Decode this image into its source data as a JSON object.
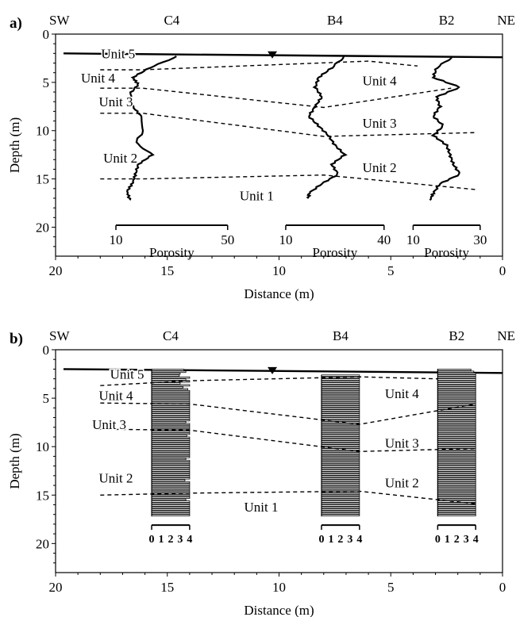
{
  "chart_data": [
    {
      "panel": "a)",
      "type": "line",
      "xlabel": "Distance (m)",
      "ylabel": "Depth (m)",
      "xlim": [
        20,
        0
      ],
      "ylim": [
        0,
        23
      ],
      "x_ticks": [
        "20",
        "15",
        "10",
        "5",
        "0"
      ],
      "y_ticks": [
        "0",
        "5",
        "10",
        "15",
        "20"
      ],
      "direction_left": "SW",
      "direction_right": "NE",
      "water_table": {
        "distance": 10.3,
        "depth": 2.2
      },
      "ground_surface": [
        [
          20,
          2.0
        ],
        [
          0,
          2.4
        ]
      ],
      "wells": [
        {
          "name": "C4",
          "series_name": "Porosity",
          "axis_min": 10,
          "axis_max": 50,
          "axis_from_distance": 17.3,
          "axis_to_distance": 12.3,
          "profile": [
            [
              2.3,
              32
            ],
            [
              3.5,
              22
            ],
            [
              4.5,
              16
            ],
            [
              5.2,
              18
            ],
            [
              6.2,
              15
            ],
            [
              7.5,
              16
            ],
            [
              8.5,
              19
            ],
            [
              10.0,
              20
            ],
            [
              11.2,
              17
            ],
            [
              12.5,
              23
            ],
            [
              13.5,
              18
            ],
            [
              14.5,
              17
            ],
            [
              15.4,
              16
            ],
            [
              16.3,
              14
            ],
            [
              17.2,
              15
            ]
          ]
        },
        {
          "name": "B4",
          "series_name": "Porosity",
          "axis_min": 10,
          "axis_max": 40,
          "axis_from_distance": 9.7,
          "axis_to_distance": 5.3,
          "profile": [
            [
              2.3,
              28
            ],
            [
              3.5,
              24
            ],
            [
              4.5,
              20
            ],
            [
              5.5,
              19
            ],
            [
              6.5,
              21
            ],
            [
              7.5,
              19
            ],
            [
              8.5,
              17
            ],
            [
              9.5,
              20
            ],
            [
              10.5,
              23
            ],
            [
              11.5,
              25
            ],
            [
              12.5,
              28
            ],
            [
              13.5,
              24
            ],
            [
              14.5,
              26
            ],
            [
              15.5,
              21
            ],
            [
              16.5,
              17
            ],
            [
              17.0,
              17
            ]
          ]
        },
        {
          "name": "B2",
          "series_name": "Porosity",
          "axis_min": 10,
          "axis_max": 30,
          "axis_from_distance": 4.0,
          "axis_to_distance": 1.0,
          "profile": [
            [
              2.3,
              22
            ],
            [
              3.5,
              17
            ],
            [
              4.5,
              16
            ],
            [
              5.5,
              24
            ],
            [
              6.5,
              17
            ],
            [
              7.5,
              18
            ],
            [
              8.5,
              16
            ],
            [
              9.5,
              19
            ],
            [
              10.5,
              16
            ],
            [
              11.5,
              20
            ],
            [
              12.5,
              21
            ],
            [
              13.5,
              22
            ],
            [
              14.5,
              24
            ],
            [
              15.5,
              18
            ],
            [
              16.5,
              16
            ],
            [
              17.2,
              15
            ]
          ]
        }
      ],
      "unit_boundaries": [
        {
          "between": "Unit 5 / Unit 4",
          "points": [
            [
              18.0,
              3.7
            ],
            [
              16.1,
              3.7
            ],
            [
              6.0,
              2.8
            ],
            [
              3.8,
              3.3
            ]
          ]
        },
        {
          "between": "Unit 4 / Unit 3",
          "points": [
            [
              18.0,
              5.6
            ],
            [
              16.1,
              5.6
            ],
            [
              8.0,
              7.6
            ],
            [
              2.3,
              5.6
            ]
          ]
        },
        {
          "between": "Unit 3 / Unit 2",
          "points": [
            [
              18.0,
              8.2
            ],
            [
              16.1,
              8.2
            ],
            [
              8.0,
              10.6
            ],
            [
              1.2,
              10.2
            ]
          ]
        },
        {
          "between": "Unit 2 / Unit 1",
          "points": [
            [
              18.0,
              15.0
            ],
            [
              16.1,
              15.0
            ],
            [
              8.0,
              14.6
            ],
            [
              1.2,
              16.1
            ]
          ]
        }
      ],
      "unit_labels": [
        {
          "text": "Unit 5",
          "distance": 17.2,
          "depth": 2.0
        },
        {
          "text": "Unit 4",
          "distance": 18.1,
          "depth": 4.5
        },
        {
          "text": "Unit 3",
          "distance": 17.3,
          "depth": 7.0
        },
        {
          "text": "Unit 2",
          "distance": 17.1,
          "depth": 12.8
        },
        {
          "text": "Unit 1",
          "distance": 11.0,
          "depth": 16.7
        },
        {
          "text": "Unit 4",
          "distance": 5.5,
          "depth": 4.8
        },
        {
          "text": "Unit 3",
          "distance": 5.5,
          "depth": 9.2
        },
        {
          "text": "Unit 2",
          "distance": 5.5,
          "depth": 13.8
        }
      ]
    },
    {
      "panel": "b)",
      "type": "bar",
      "xlabel": "Distance (m)",
      "ylabel": "Depth (m)",
      "xlim": [
        20,
        0
      ],
      "ylim": [
        0,
        23
      ],
      "x_ticks": [
        "20",
        "15",
        "10",
        "5",
        "0"
      ],
      "y_ticks": [
        "0",
        "5",
        "10",
        "15",
        "20"
      ],
      "direction_left": "SW",
      "direction_right": "NE",
      "water_table": {
        "distance": 10.3,
        "depth": 2.2
      },
      "ground_surface": [
        [
          20,
          2.0
        ],
        [
          0,
          2.4
        ]
      ],
      "wells": [
        {
          "name": "C4",
          "scale_labels": [
            "0",
            "1",
            "2",
            "3",
            "4"
          ],
          "axis_min": 0,
          "axis_max": 4,
          "axis_from_distance": 15.7,
          "axis_to_distance": 14.0,
          "top_depth": 2.0,
          "bottom_depth": 17.2,
          "log_values": [
            3.4,
            3.6,
            3.0,
            2.9,
            4,
            3.6,
            4,
            3.0,
            4,
            3.3,
            3.8,
            4,
            4,
            4,
            4,
            4,
            4,
            4,
            4,
            4,
            4,
            4,
            4,
            4,
            4,
            4,
            4,
            3.6,
            4,
            4,
            4,
            4,
            4,
            4,
            3.7,
            4,
            4,
            4,
            4,
            4,
            4,
            4,
            4,
            4,
            4,
            4,
            3.6,
            4,
            4,
            4,
            4,
            4,
            4,
            4,
            4,
            4,
            4,
            3.5,
            4,
            4,
            4,
            4,
            4,
            4,
            4,
            4,
            4,
            3.6,
            4,
            4,
            4,
            4,
            4,
            4,
            4,
            4
          ]
        },
        {
          "name": "B4",
          "scale_labels": [
            "0",
            "1",
            "2",
            "3",
            "4"
          ],
          "axis_min": 0,
          "axis_max": 4,
          "axis_from_distance": 8.1,
          "axis_to_distance": 6.4,
          "top_depth": 2.6,
          "bottom_depth": 17.2,
          "log_values": [
            4,
            4,
            4,
            4,
            4,
            4,
            4,
            4,
            4,
            4,
            4,
            4,
            4,
            4,
            4,
            4,
            4,
            4,
            4,
            4,
            4,
            4,
            4,
            4,
            4,
            4,
            4,
            4,
            4,
            4,
            4,
            4,
            4,
            4,
            4,
            4,
            4,
            4,
            4,
            4,
            4,
            4,
            4,
            4,
            4,
            4,
            4,
            4,
            4,
            4,
            4,
            4,
            4,
            4,
            4,
            4,
            4,
            4,
            4,
            4,
            4,
            4,
            4,
            4,
            4,
            4,
            4,
            4,
            4,
            4,
            4,
            4,
            4
          ]
        },
        {
          "name": "B2",
          "scale_labels": [
            "0",
            "1",
            "2",
            "3",
            "4"
          ],
          "axis_min": 0,
          "axis_max": 4,
          "axis_from_distance": 2.9,
          "axis_to_distance": 1.2,
          "top_depth": 2.0,
          "bottom_depth": 17.2,
          "log_values": [
            3.5,
            3.8,
            4,
            4,
            4,
            4,
            4,
            4,
            4,
            4,
            4,
            4,
            4,
            4,
            4,
            4,
            4,
            4,
            4,
            4,
            4,
            4,
            4,
            4,
            4,
            4,
            4,
            4,
            4,
            4,
            4,
            4,
            4,
            4,
            4,
            4,
            4,
            4,
            4,
            4,
            4,
            4,
            4,
            4,
            4,
            4,
            4,
            4,
            4,
            4,
            4,
            4,
            4,
            4,
            4,
            4,
            4,
            4,
            4,
            4,
            4,
            4,
            4,
            4,
            4,
            4,
            4,
            4,
            4,
            4,
            4,
            4,
            4,
            4,
            4,
            4
          ]
        }
      ],
      "unit_boundaries": [
        {
          "between": "Unit 5 / Unit 4",
          "points": [
            [
              18.0,
              3.7
            ],
            [
              14.0,
              3.2
            ],
            [
              6.4,
              2.8
            ],
            [
              2.9,
              3.0
            ]
          ]
        },
        {
          "between": "Unit 4 / Unit 3",
          "points": [
            [
              18.0,
              5.5
            ],
            [
              14.0,
              5.6
            ],
            [
              6.4,
              7.7
            ],
            [
              1.2,
              5.6
            ]
          ]
        },
        {
          "between": "Unit 3 / Unit 2",
          "points": [
            [
              18.0,
              8.2
            ],
            [
              14.0,
              8.3
            ],
            [
              6.4,
              10.5
            ],
            [
              1.2,
              10.2
            ]
          ]
        },
        {
          "between": "Unit 2 / Unit 1",
          "points": [
            [
              18.0,
              15.0
            ],
            [
              14.0,
              14.8
            ],
            [
              6.4,
              14.6
            ],
            [
              1.2,
              15.9
            ]
          ]
        }
      ],
      "unit_labels": [
        {
          "text": "Unit 5",
          "distance": 16.8,
          "depth": 2.5
        },
        {
          "text": "Unit 4",
          "distance": 17.3,
          "depth": 4.7
        },
        {
          "text": "Unit 3",
          "distance": 17.6,
          "depth": 7.7
        },
        {
          "text": "Unit 2",
          "distance": 17.3,
          "depth": 13.2
        },
        {
          "text": "Unit 1",
          "distance": 10.8,
          "depth": 16.2
        },
        {
          "text": "Unit 4",
          "distance": 4.5,
          "depth": 4.5
        },
        {
          "text": "Unit 3",
          "distance": 4.5,
          "depth": 9.6
        },
        {
          "text": "Unit 2",
          "distance": 4.5,
          "depth": 13.7
        }
      ]
    }
  ]
}
